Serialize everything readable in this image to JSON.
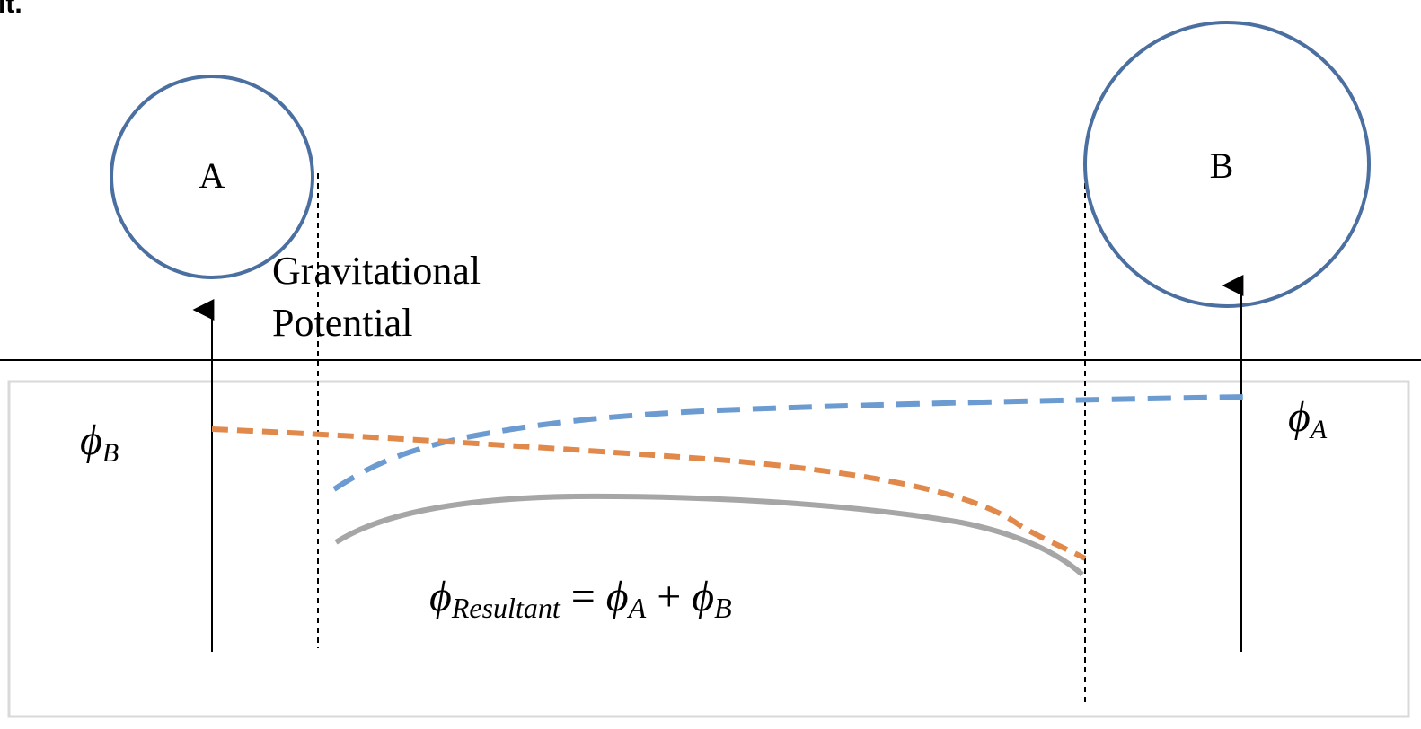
{
  "top_fragment": "it.",
  "bodies": [
    {
      "label": "A",
      "color": "#4a6fa0"
    },
    {
      "label": "B",
      "color": "#4a6fa0"
    }
  ],
  "axis_label_line1": "Gravitational",
  "axis_label_line2": "Potential",
  "phi_b_label": {
    "symbol": "ϕ",
    "sub": "B"
  },
  "phi_a_label": {
    "symbol": "ϕ",
    "sub": "A"
  },
  "equation": {
    "lhs_symbol": "ϕ",
    "lhs_sub": "Resultant",
    "eq": " = ",
    "a_symbol": "ϕ",
    "a_sub": "A",
    "plus": " + ",
    "b_symbol": "ϕ",
    "b_sub": "B"
  },
  "curve_colors": {
    "phi_a": "#6b9bd1",
    "phi_b": "#e0894a",
    "resultant": "#a6a6a6"
  },
  "frame_color": "#d9d9d9"
}
